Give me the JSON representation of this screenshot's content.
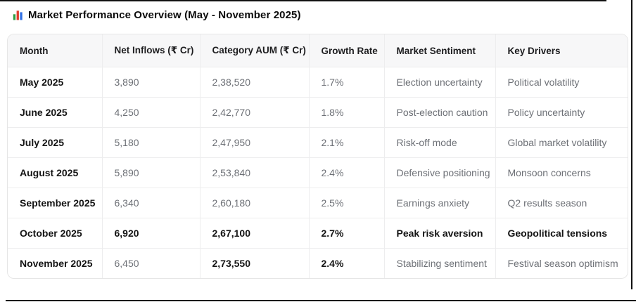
{
  "title": {
    "icon": "bar-chart-icon",
    "text": "Market Performance Overview (May - November 2025)"
  },
  "table": {
    "columns": [
      "Month",
      "Net Inflows (₹ Cr)",
      "Category AUM (₹ Cr)",
      "Growth Rate",
      "Market Sentiment",
      "Key Drivers"
    ],
    "rows": [
      {
        "cells": [
          "May 2025",
          "3,890",
          "2,38,520",
          "1.7%",
          "Election uncertainty",
          "Political volatility"
        ],
        "bold": [
          1,
          0,
          0,
          0,
          0,
          0
        ]
      },
      {
        "cells": [
          "June 2025",
          "4,250",
          "2,42,770",
          "1.8%",
          "Post-election caution",
          "Policy uncertainty"
        ],
        "bold": [
          1,
          0,
          0,
          0,
          0,
          0
        ]
      },
      {
        "cells": [
          "July 2025",
          "5,180",
          "2,47,950",
          "2.1%",
          "Risk-off mode",
          "Global market volatility"
        ],
        "bold": [
          1,
          0,
          0,
          0,
          0,
          0
        ]
      },
      {
        "cells": [
          "August 2025",
          "5,890",
          "2,53,840",
          "2.4%",
          "Defensive positioning",
          "Monsoon concerns"
        ],
        "bold": [
          1,
          0,
          0,
          0,
          0,
          0
        ]
      },
      {
        "cells": [
          "September 2025",
          "6,340",
          "2,60,180",
          "2.5%",
          "Earnings anxiety",
          "Q2 results season"
        ],
        "bold": [
          1,
          0,
          0,
          0,
          0,
          0
        ]
      },
      {
        "cells": [
          "October 2025",
          "6,920",
          "2,67,100",
          "2.7%",
          "Peak risk aversion",
          "Geopolitical tensions"
        ],
        "bold": [
          1,
          1,
          1,
          1,
          1,
          1
        ]
      },
      {
        "cells": [
          "November 2025",
          "6,450",
          "2,73,550",
          "2.4%",
          "Stabilizing sentiment",
          "Festival season optimism"
        ],
        "bold": [
          1,
          0,
          1,
          1,
          0,
          0
        ]
      }
    ]
  },
  "colors": {
    "header_bg": "#f7f7f8",
    "grid_line": "#ededee",
    "text_primary": "#141414",
    "text_secondary": "#6d7076",
    "frame": "#111111",
    "icon_green": "#2e9e44",
    "icon_red": "#e23d2e",
    "icon_blue": "#2f6fe4"
  },
  "chart_data": {
    "type": "table",
    "title": "Market Performance Overview (May - November 2025)",
    "columns": [
      "Month",
      "Net Inflows (₹ Cr)",
      "Category AUM (₹ Cr)",
      "Growth Rate",
      "Market Sentiment",
      "Key Drivers"
    ],
    "rows": [
      [
        "May 2025",
        "3,890",
        "2,38,520",
        "1.7%",
        "Election uncertainty",
        "Political volatility"
      ],
      [
        "June 2025",
        "4,250",
        "2,42,770",
        "1.8%",
        "Post-election caution",
        "Policy uncertainty"
      ],
      [
        "July 2025",
        "5,180",
        "2,47,950",
        "2.1%",
        "Risk-off mode",
        "Global market volatility"
      ],
      [
        "August 2025",
        "5,890",
        "2,53,840",
        "2.4%",
        "Defensive positioning",
        "Monsoon concerns"
      ],
      [
        "September 2025",
        "6,340",
        "2,60,180",
        "2.5%",
        "Earnings anxiety",
        "Q2 results season"
      ],
      [
        "October 2025",
        "6,920",
        "2,67,100",
        "2.7%",
        "Peak risk aversion",
        "Geopolitical tensions"
      ],
      [
        "November 2025",
        "6,450",
        "2,73,550",
        "2.4%",
        "Stabilizing sentiment",
        "Festival season optimism"
      ]
    ],
    "net_inflows_cr": [
      3890,
      4250,
      5180,
      5890,
      6340,
      6920,
      6450
    ],
    "category_aum_cr": [
      238520,
      242770,
      247950,
      253840,
      260180,
      267100,
      273550
    ],
    "growth_rate_pct": [
      1.7,
      1.8,
      2.1,
      2.4,
      2.5,
      2.7,
      2.4
    ]
  }
}
